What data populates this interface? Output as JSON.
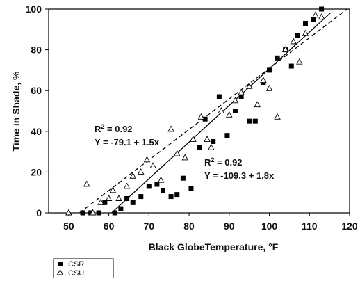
{
  "chart_data": {
    "type": "scatter",
    "xlabel": "Black GlobeTemperature, °F",
    "ylabel": "Time in Shade, %",
    "xlim": [
      45,
      120
    ],
    "ylim": [
      0,
      100
    ],
    "xticks": [
      50,
      60,
      70,
      80,
      90,
      100,
      110,
      120
    ],
    "yticks": [
      0,
      20,
      40,
      60,
      80,
      100
    ],
    "grid": false,
    "legend_placement": "bottom-left, below axis",
    "series": [
      {
        "name": "CSR",
        "marker": "filled-square",
        "color": "#000000",
        "points": [
          [
            53.5,
            0
          ],
          [
            55.5,
            0
          ],
          [
            57.5,
            0
          ],
          [
            59,
            5
          ],
          [
            61.5,
            0
          ],
          [
            63,
            2
          ],
          [
            64.5,
            7
          ],
          [
            66,
            5
          ],
          [
            68,
            8
          ],
          [
            70,
            13
          ],
          [
            72,
            14
          ],
          [
            73.5,
            11
          ],
          [
            75.5,
            8
          ],
          [
            77,
            9
          ],
          [
            78.5,
            17
          ],
          [
            80.5,
            12
          ],
          [
            82.5,
            32
          ],
          [
            84,
            46
          ],
          [
            86,
            35
          ],
          [
            87.5,
            57
          ],
          [
            89.5,
            38
          ],
          [
            91.5,
            50
          ],
          [
            93,
            57
          ],
          [
            95,
            45
          ],
          [
            96.5,
            45
          ],
          [
            98.5,
            64
          ],
          [
            100,
            70
          ],
          [
            102,
            76
          ],
          [
            104,
            80
          ],
          [
            105.5,
            72
          ],
          [
            107,
            87
          ],
          [
            109,
            93
          ],
          [
            111,
            95
          ],
          [
            113,
            100
          ]
        ],
        "fit": {
          "label_r2": "R",
          "label_r2_sup": "2",
          "label_r2_rest": " = 0.92",
          "label_eq": "Y = -109.3 + 1.8x",
          "intercept": -109.3,
          "slope": 1.8,
          "x_range": [
            60.7,
            115.2
          ],
          "style": "solid"
        }
      },
      {
        "name": "CSU",
        "marker": "open-triangle",
        "color": "#000000",
        "points": [
          [
            50,
            0
          ],
          [
            54.5,
            14
          ],
          [
            56,
            0
          ],
          [
            58,
            5
          ],
          [
            60,
            7
          ],
          [
            61,
            11
          ],
          [
            62.5,
            7
          ],
          [
            64.5,
            13
          ],
          [
            66,
            18
          ],
          [
            68,
            20
          ],
          [
            69.5,
            26
          ],
          [
            71,
            23
          ],
          [
            73,
            16
          ],
          [
            75.5,
            41
          ],
          [
            77,
            29
          ],
          [
            79,
            27
          ],
          [
            81,
            36
          ],
          [
            83,
            47
          ],
          [
            84.5,
            36
          ],
          [
            85.5,
            32
          ],
          [
            88,
            50
          ],
          [
            90,
            48
          ],
          [
            91.5,
            55
          ],
          [
            93,
            59
          ],
          [
            95,
            62
          ],
          [
            97,
            53
          ],
          [
            98.5,
            65
          ],
          [
            100,
            61
          ],
          [
            102,
            47
          ],
          [
            104,
            80
          ],
          [
            106,
            84
          ],
          [
            107.5,
            74
          ],
          [
            109,
            88
          ],
          [
            111.5,
            97
          ],
          [
            113,
            96
          ]
        ],
        "fit": {
          "label_r2": "R",
          "label_r2_sup": "2",
          "label_r2_rest": " = 0.92",
          "label_eq": "Y = -79.1 + 1.5x",
          "intercept": -79.1,
          "slope": 1.5,
          "x_range": [
            52.7,
            120
          ],
          "style": "dashed"
        }
      }
    ]
  }
}
